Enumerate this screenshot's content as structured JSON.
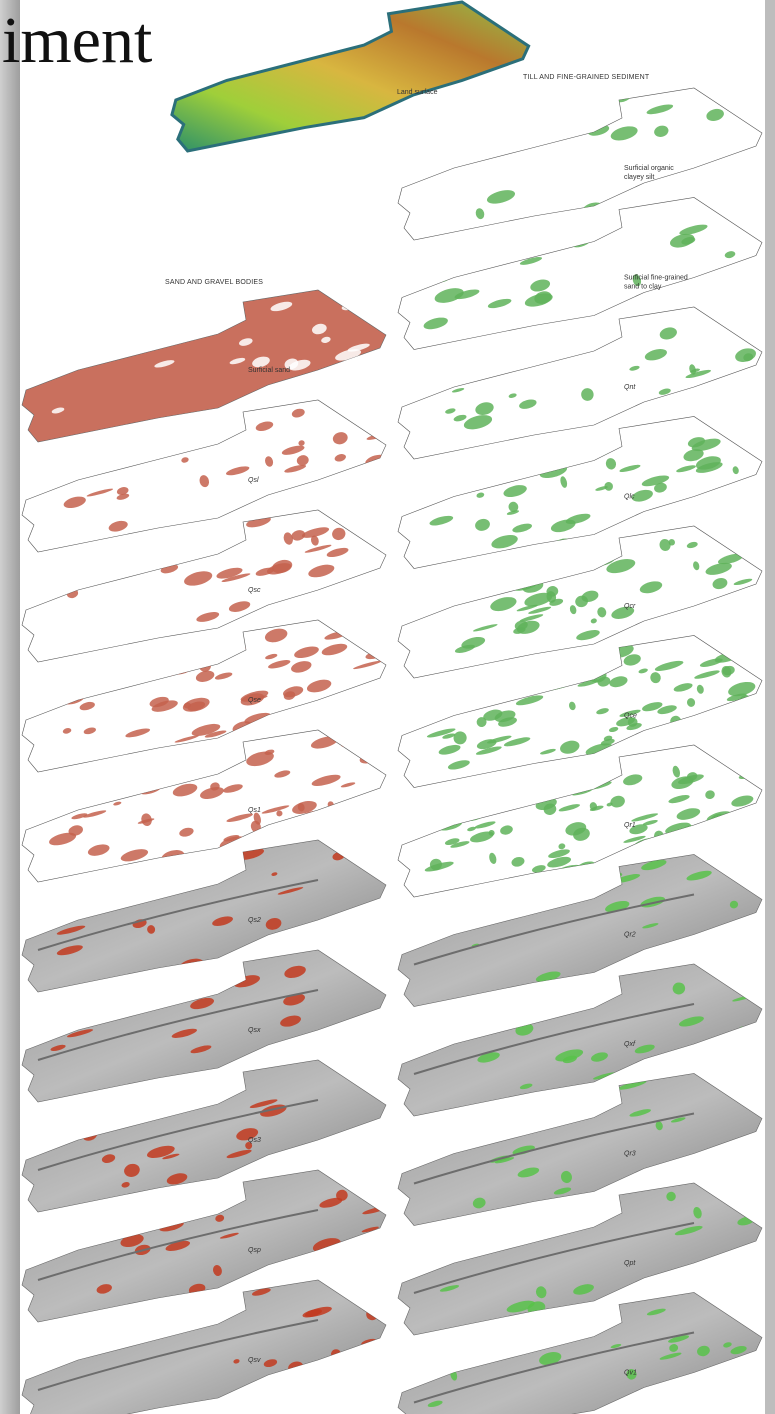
{
  "header": {
    "title": "iment"
  },
  "land_surface": {
    "label": "Land surface"
  },
  "columns": [
    {
      "title": "SAND AND GRAVEL BODIES",
      "panels": [
        [
          "Surficial sand"
        ],
        [
          "Qsl"
        ],
        [
          "Qsc"
        ],
        [
          "Qse"
        ],
        [
          "Qs1"
        ],
        [
          "Qs2"
        ],
        [
          "Qsx"
        ],
        [
          "Qs3"
        ],
        [
          "Qsp"
        ],
        [
          "Qsv"
        ]
      ]
    },
    {
      "title": "TILL AND FINE-GRAINED SEDIMENT",
      "panels": [
        [
          "Surficial organic",
          "clayey silt"
        ],
        [
          "Surficial fine-grained",
          "sand to clay"
        ],
        [
          "Qnt"
        ],
        [
          "Qlc"
        ],
        [
          "Qcr"
        ],
        [
          "Qce"
        ],
        [
          "Qr1"
        ],
        [
          "Qr2"
        ],
        [
          "Qxf"
        ],
        [
          "Qr3"
        ],
        [
          "Qpt"
        ],
        [
          "Qv1"
        ]
      ]
    }
  ]
}
